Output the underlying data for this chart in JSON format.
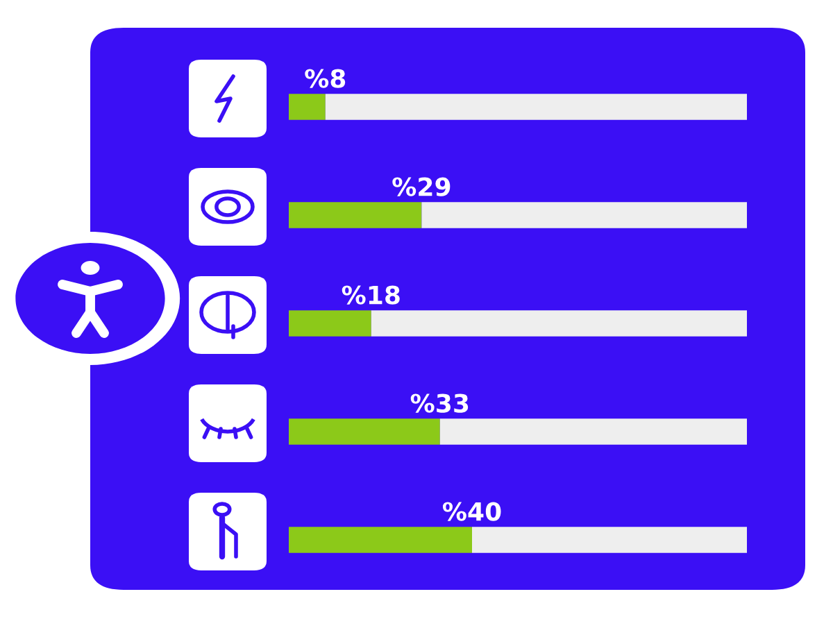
{
  "chart_data": {
    "type": "bar",
    "orientation": "horizontal",
    "stacked": true,
    "categories": [
      null,
      null,
      null,
      null,
      null
    ],
    "series": [
      {
        "color": "#8cc919",
        "values": [
          8,
          29,
          18,
          33,
          40
        ],
        "value_labels": [
          "%8",
          "%29",
          "%18",
          "%33",
          "%40"
        ]
      },
      {
        "color": "#eeeeee",
        "values": [
          92,
          71,
          82,
          67,
          60
        ]
      }
    ],
    "xlim": [
      0,
      100
    ],
    "tick_labels": false,
    "grid": false
  }
}
